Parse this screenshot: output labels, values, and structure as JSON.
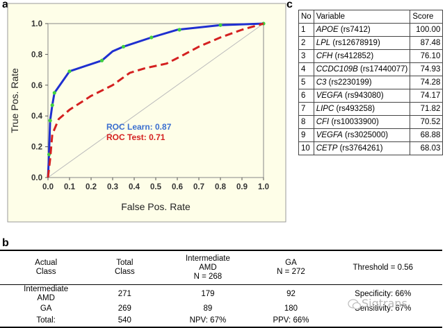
{
  "panels": {
    "a": "a",
    "b": "b",
    "c": "c"
  },
  "chart_data": {
    "type": "line",
    "xlabel": "False Pos. Rate",
    "ylabel": "True Pos. Rate",
    "xlim": [
      0,
      1
    ],
    "ylim": [
      0,
      1
    ],
    "xticks": [
      "0.0",
      "0.1",
      "0.2",
      "0.3",
      "0.4",
      "0.5",
      "0.6",
      "0.7",
      "0.8",
      "0.9",
      "1.0"
    ],
    "yticks": [
      "0.0",
      "0.2",
      "0.4",
      "0.6",
      "0.8",
      "1.0"
    ],
    "background": "#fefee8",
    "series": [
      {
        "name": "ROC Learn",
        "color": "#1f2fd0",
        "style": "solid",
        "x": [
          0,
          0.005,
          0.01,
          0.02,
          0.03,
          0.1,
          0.25,
          0.3,
          0.35,
          0.48,
          0.6,
          0.8,
          1.0
        ],
        "y": [
          0,
          0.15,
          0.37,
          0.47,
          0.55,
          0.69,
          0.76,
          0.82,
          0.85,
          0.91,
          0.96,
          0.99,
          1.0
        ],
        "markers_x": [
          0.005,
          0.01,
          0.02,
          0.03,
          0.1,
          0.25,
          0.35,
          0.48,
          0.61,
          0.8,
          1.0
        ],
        "markers_y": [
          0.15,
          0.37,
          0.47,
          0.55,
          0.69,
          0.76,
          0.85,
          0.91,
          0.96,
          0.99,
          1.0
        ]
      },
      {
        "name": "ROC Test",
        "color": "#d42020",
        "style": "dashed",
        "x": [
          0,
          0.01,
          0.02,
          0.05,
          0.1,
          0.2,
          0.3,
          0.38,
          0.45,
          0.55,
          0.62,
          0.7,
          0.8,
          0.9,
          1.0
        ],
        "y": [
          0,
          0.12,
          0.28,
          0.38,
          0.44,
          0.53,
          0.6,
          0.68,
          0.71,
          0.74,
          0.79,
          0.85,
          0.91,
          0.96,
          1.0
        ]
      }
    ],
    "legend": [
      {
        "label": "ROC Learn: 0.87",
        "color": "#3b6fd0"
      },
      {
        "label": "ROC Test: 0.71",
        "color": "#d42020"
      }
    ],
    "grid": false,
    "diagonal_reference": true
  },
  "variables_table": {
    "headers": [
      "No",
      "Variable",
      "Score"
    ],
    "rows": [
      {
        "no": "1",
        "gene": "APOE",
        "snp": "(rs7412)",
        "score": "100.00"
      },
      {
        "no": "2",
        "gene": "LPL",
        "snp": "(rs12678919)",
        "score": "87.48"
      },
      {
        "no": "3",
        "gene": "CFH",
        "snp": "(rs412852)",
        "score": "76.10"
      },
      {
        "no": "4",
        "gene": "CCDC109B",
        "snp": "(rs17440077)",
        "score": "74.93"
      },
      {
        "no": "5",
        "gene": "C3",
        "snp": "(rs2230199)",
        "score": "74.28"
      },
      {
        "no": "6",
        "gene": "VEGFA",
        "snp": "(rs943080)",
        "score": "74.17"
      },
      {
        "no": "7",
        "gene": "LIPC",
        "snp": "(rs493258)",
        "score": "71.82"
      },
      {
        "no": "8",
        "gene": "CFI",
        "snp": "(rs10033900)",
        "score": "70.52"
      },
      {
        "no": "9",
        "gene": "VEGFA",
        "snp": "(rs3025000)",
        "score": "68.88"
      },
      {
        "no": "10",
        "gene": "CETP",
        "snp": "(rs3764261)",
        "score": "68.03"
      }
    ]
  },
  "class_table": {
    "headers": [
      "Actual Class",
      "Total Class",
      "Intermediate AMD N = 268",
      "GA N = 272",
      "Threshold = 0.56"
    ],
    "header_lines": [
      [
        "Actual",
        "Class"
      ],
      [
        "Total",
        "Class"
      ],
      [
        "Intermediate",
        "AMD",
        "N = 268"
      ],
      [
        "GA",
        "N = 272"
      ],
      [
        "Threshold = 0.56"
      ]
    ],
    "rows": [
      {
        "cls_lines": [
          "Intermediate",
          "AMD"
        ],
        "total": "271",
        "intermediate": "179",
        "ga": "92",
        "metric": "Specificity: 66%"
      },
      {
        "cls_lines": [
          "GA"
        ],
        "total": "269",
        "intermediate": "89",
        "ga": "180",
        "metric": "Sensitivity: 67%"
      },
      {
        "cls_lines": [
          "Total:"
        ],
        "total": "540",
        "intermediate": "NPV: 67%",
        "ga": "PPV: 66%",
        "metric": ""
      }
    ]
  },
  "watermark": {
    "text": "Sigtrans",
    "icon": "wechat-icon"
  }
}
